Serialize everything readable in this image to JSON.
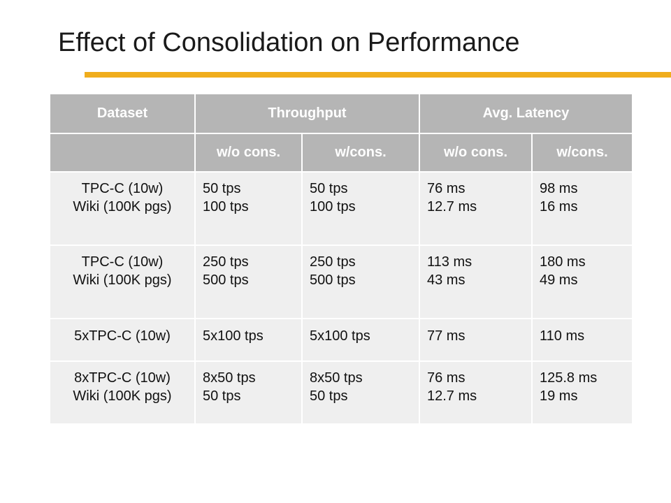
{
  "slide": {
    "title": "Effect of Consolidation on Performance"
  },
  "colors": {
    "accent_rule": "#f0ad1c",
    "header_bg": "#b5b5b5",
    "header_text": "#ffffff",
    "row_bg": "#efefef"
  },
  "table": {
    "headers": {
      "dataset": "Dataset",
      "throughput": "Throughput",
      "latency": "Avg. Latency"
    },
    "subheaders": [
      "w/o cons.",
      "w/cons.",
      "w/o cons.",
      "w/cons."
    ],
    "rows": [
      {
        "dataset": [
          "TPC-C (10w)",
          "Wiki (100K pgs)"
        ],
        "tp_wo": [
          "50 tps",
          "100 tps"
        ],
        "tp_w": [
          "50 tps",
          "100 tps"
        ],
        "lat_wo": [
          "76 ms",
          "12.7 ms"
        ],
        "lat_w": [
          "98 ms",
          "16 ms"
        ]
      },
      {
        "dataset": [
          "TPC-C (10w)",
          "Wiki (100K pgs)"
        ],
        "tp_wo": [
          "250 tps",
          "500 tps"
        ],
        "tp_w": [
          "250 tps",
          "500 tps"
        ],
        "lat_wo": [
          "113 ms",
          "43 ms"
        ],
        "lat_w": [
          "180 ms",
          "49 ms"
        ]
      },
      {
        "dataset": [
          "5xTPC-C (10w)"
        ],
        "tp_wo": [
          "5x100 tps"
        ],
        "tp_w": [
          "5x100 tps"
        ],
        "lat_wo": [
          "77 ms"
        ],
        "lat_w": [
          "110 ms"
        ]
      },
      {
        "dataset": [
          "8xTPC-C (10w)",
          "Wiki (100K pgs)"
        ],
        "tp_wo": [
          "8x50 tps",
          "50 tps"
        ],
        "tp_w": [
          "8x50 tps",
          "50 tps"
        ],
        "lat_wo": [
          "76 ms",
          "12.7 ms"
        ],
        "lat_w": [
          "125.8 ms",
          "19 ms"
        ]
      }
    ]
  }
}
